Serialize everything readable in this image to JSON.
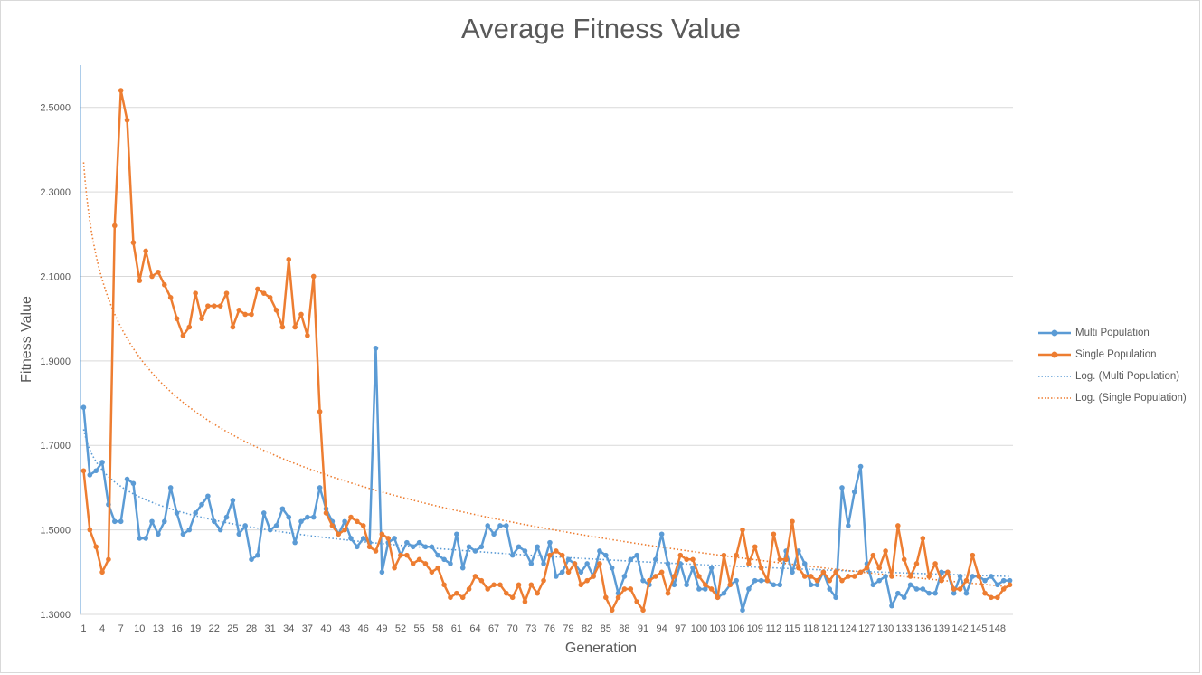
{
  "chart_data": {
    "type": "line",
    "title": "Average Fitness Value",
    "xlabel": "Generation",
    "ylabel": "Fitness Value",
    "ylim": [
      1.3,
      2.6
    ],
    "yticks": [
      "1.3000",
      "1.5000",
      "1.7000",
      "1.9000",
      "2.1000",
      "2.3000",
      "2.5000"
    ],
    "xticks": [
      1,
      4,
      7,
      10,
      13,
      16,
      19,
      22,
      25,
      28,
      31,
      34,
      37,
      40,
      43,
      46,
      49,
      52,
      55,
      58,
      61,
      64,
      67,
      70,
      73,
      76,
      79,
      82,
      85,
      88,
      91,
      94,
      97,
      100,
      103,
      106,
      109,
      112,
      115,
      118,
      121,
      124,
      127,
      130,
      133,
      136,
      139,
      142,
      145,
      148
    ],
    "x_count": 150,
    "grid": "horizontal",
    "legend_position": "right",
    "series": [
      {
        "name": "Multi Population",
        "color": "#5b9bd5",
        "values": [
          1.79,
          1.63,
          1.64,
          1.66,
          1.56,
          1.52,
          1.52,
          1.62,
          1.61,
          1.48,
          1.48,
          1.52,
          1.49,
          1.52,
          1.6,
          1.54,
          1.49,
          1.5,
          1.54,
          1.56,
          1.58,
          1.52,
          1.5,
          1.53,
          1.57,
          1.49,
          1.51,
          1.43,
          1.44,
          1.54,
          1.5,
          1.51,
          1.55,
          1.53,
          1.47,
          1.52,
          1.53,
          1.53,
          1.6,
          1.55,
          1.52,
          1.49,
          1.52,
          1.48,
          1.46,
          1.48,
          1.47,
          1.93,
          1.4,
          1.47,
          1.48,
          1.44,
          1.47,
          1.46,
          1.47,
          1.46,
          1.46,
          1.44,
          1.43,
          1.42,
          1.49,
          1.41,
          1.46,
          1.45,
          1.46,
          1.51,
          1.49,
          1.51,
          1.51,
          1.44,
          1.46,
          1.45,
          1.42,
          1.46,
          1.42,
          1.47,
          1.39,
          1.4,
          1.43,
          1.42,
          1.4,
          1.42,
          1.39,
          1.45,
          1.44,
          1.41,
          1.35,
          1.39,
          1.43,
          1.44,
          1.38,
          1.37,
          1.43,
          1.49,
          1.42,
          1.37,
          1.42,
          1.37,
          1.41,
          1.36,
          1.36,
          1.41,
          1.34,
          1.35,
          1.37,
          1.38,
          1.31,
          1.36,
          1.38,
          1.38,
          1.38,
          1.37,
          1.37,
          1.45,
          1.4,
          1.45,
          1.42,
          1.37,
          1.37,
          1.4,
          1.36,
          1.34,
          1.6,
          1.51,
          1.59,
          1.65,
          1.42,
          1.37,
          1.38,
          1.39,
          1.32,
          1.35,
          1.34,
          1.37,
          1.36,
          1.36,
          1.35,
          1.35,
          1.4,
          1.4,
          1.35,
          1.39,
          1.35,
          1.39,
          1.39,
          1.38,
          1.39,
          1.37,
          1.38,
          1.38
        ]
      },
      {
        "name": "Single Population",
        "color": "#ed7d31",
        "values": [
          1.64,
          1.5,
          1.46,
          1.4,
          1.43,
          2.22,
          2.54,
          2.47,
          2.18,
          2.09,
          2.16,
          2.1,
          2.11,
          2.08,
          2.05,
          2.0,
          1.96,
          1.98,
          2.06,
          2.0,
          2.03,
          2.03,
          2.03,
          2.06,
          1.98,
          2.02,
          2.01,
          2.01,
          2.07,
          2.06,
          2.05,
          2.02,
          1.98,
          2.14,
          1.98,
          2.01,
          1.96,
          2.1,
          1.78,
          1.54,
          1.51,
          1.49,
          1.5,
          1.53,
          1.52,
          1.51,
          1.46,
          1.45,
          1.49,
          1.48,
          1.41,
          1.44,
          1.44,
          1.42,
          1.43,
          1.42,
          1.4,
          1.41,
          1.37,
          1.34,
          1.35,
          1.34,
          1.36,
          1.39,
          1.38,
          1.36,
          1.37,
          1.37,
          1.35,
          1.34,
          1.37,
          1.33,
          1.37,
          1.35,
          1.38,
          1.44,
          1.45,
          1.44,
          1.4,
          1.42,
          1.37,
          1.38,
          1.39,
          1.42,
          1.34,
          1.31,
          1.34,
          1.36,
          1.36,
          1.33,
          1.31,
          1.38,
          1.39,
          1.4,
          1.35,
          1.39,
          1.44,
          1.43,
          1.43,
          1.39,
          1.37,
          1.36,
          1.34,
          1.44,
          1.37,
          1.44,
          1.5,
          1.42,
          1.46,
          1.41,
          1.38,
          1.49,
          1.43,
          1.43,
          1.52,
          1.41,
          1.39,
          1.39,
          1.38,
          1.4,
          1.38,
          1.4,
          1.38,
          1.39,
          1.39,
          1.4,
          1.41,
          1.44,
          1.41,
          1.45,
          1.39,
          1.51,
          1.43,
          1.39,
          1.42,
          1.48,
          1.39,
          1.42,
          1.38,
          1.4,
          1.36,
          1.36,
          1.38,
          1.44,
          1.39,
          1.35,
          1.34,
          1.34,
          1.36,
          1.37
        ]
      }
    ],
    "trendlines": [
      {
        "name": "Log. (Multi Population)",
        "color": "#5b9bd5",
        "type": "logarithmic",
        "a": 1.738,
        "b": -0.0695
      },
      {
        "name": "Log. (Single Population)",
        "color": "#ed7d31",
        "type": "logarithmic",
        "a": 2.37,
        "b": -0.2005
      }
    ]
  }
}
